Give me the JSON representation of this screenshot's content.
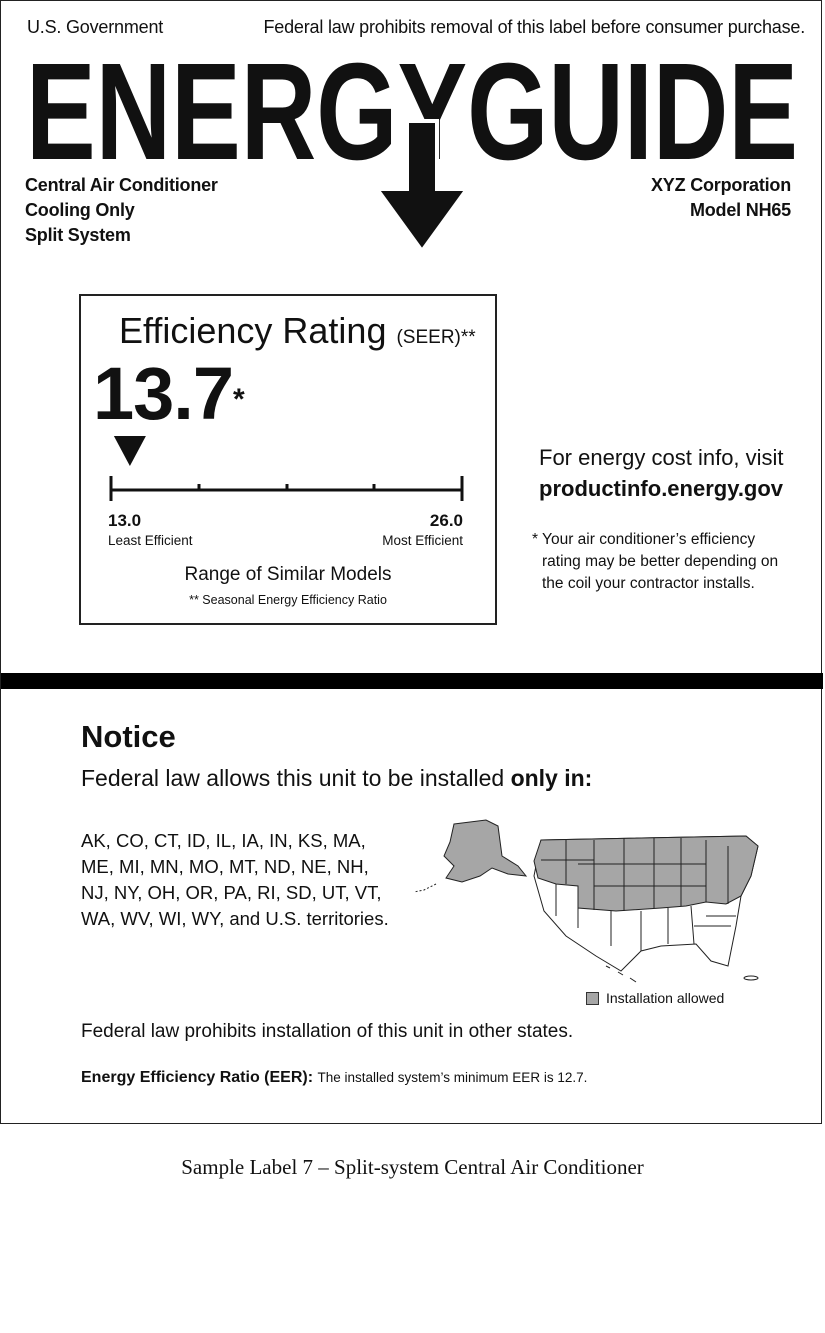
{
  "header": {
    "left_text": "U.S. Government",
    "right_text": "Federal law prohibits removal of this label before consumer purchase.",
    "logo_text": "ENERGYGUIDE"
  },
  "product": {
    "type_lines": [
      "Central Air Conditioner",
      "Cooling Only",
      "Split System"
    ],
    "manufacturer": "XYZ Corporation",
    "model": "Model NH65"
  },
  "rating_box": {
    "title": "Efficiency Rating",
    "title_suffix": "(SEER)**",
    "value": "13.7",
    "value_mark": "*",
    "scale_min": "13.0",
    "scale_min_label": "Least Efficient",
    "scale_max": "26.0",
    "scale_max_label": "Most Efficient",
    "range_label": "Range of Similar Models",
    "footnote": "** Seasonal Energy Efficiency Ratio",
    "pointer_value": 13.7,
    "scale_min_value": 13.0,
    "scale_max_value": 26.0
  },
  "energy_cost": {
    "line1": "For energy cost info, visit",
    "url": "productinfo.energy.gov",
    "footnote_lines": [
      "* Your air conditioner’s efficiency",
      "rating may be better depending on",
      "the coil your contractor installs."
    ]
  },
  "notice": {
    "title": "Notice",
    "subtitle_prefix": "Federal law allows this unit to be installed ",
    "subtitle_bold": "only in:",
    "states_lines": [
      "AK, CO, CT, ID, IL, IA, IN, KS, MA,",
      "ME, MI, MN, MO, MT, ND, NE, NH,",
      "NJ, NY, OH, OR, PA, RI, SD, UT, VT,",
      "WA, WV, WI, WY, and U.S. territories."
    ],
    "legend": "Installation allowed",
    "prohibit": "Federal law prohibits installation of this unit in other states.",
    "eer_label": "Energy Efficiency Ratio (EER):",
    "eer_text": "The installed system’s minimum EER is 12.7."
  },
  "caption": "Sample Label 7 – Split-system Central Air Conditioner",
  "colors": {
    "allowed_fill": "#a6a6a6",
    "ink": "#111111"
  }
}
